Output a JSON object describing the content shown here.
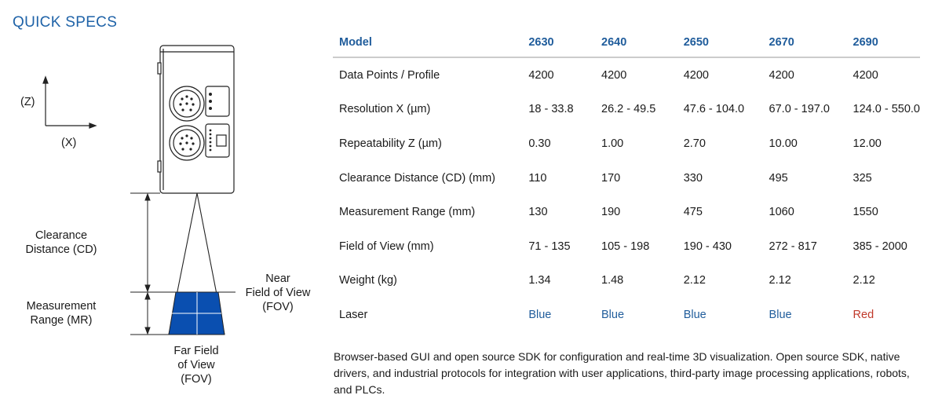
{
  "title": "QUICK SPECS",
  "diagram": {
    "axis_z": "(Z)",
    "axis_x": "(X)",
    "clearance_label": [
      "Clearance",
      "Distance (CD)"
    ],
    "measurement_label": [
      "Measurement",
      "Range (MR)"
    ],
    "near_fov_label": [
      "Near",
      "Field of View",
      "(FOV)"
    ],
    "far_fov_label": [
      "Far Field",
      "of View",
      "(FOV)"
    ],
    "fov_color": "#0a4fb0"
  },
  "table": {
    "header": [
      "Model",
      "2630",
      "2640",
      "2650",
      "2670",
      "2690"
    ],
    "rows": [
      [
        "Data Points / Profile",
        "4200",
        "4200",
        "4200",
        "4200",
        "4200"
      ],
      [
        "Resolution X (µm)",
        "18 - 33.8",
        "26.2 - 49.5",
        "47.6 - 104.0",
        "67.0 - 197.0",
        "124.0 - 550.0"
      ],
      [
        "Repeatability Z (µm)",
        "0.30",
        "1.00",
        "2.70",
        "10.00",
        "12.00"
      ],
      [
        "Clearance Distance (CD) (mm)",
        "110",
        "170",
        "330",
        "495",
        "325"
      ],
      [
        "Measurement Range (mm)",
        "130",
        "190",
        "475",
        "1060",
        "1550"
      ],
      [
        "Field of View (mm)",
        "71 - 135",
        "105 - 198",
        "190 - 430",
        "272 - 817",
        "385 - 2000"
      ],
      [
        "Weight (kg)",
        "1.34",
        "1.48",
        "2.12",
        "2.12",
        "2.12"
      ],
      [
        "Laser",
        "Blue",
        "Blue",
        "Blue",
        "Blue",
        "Red"
      ]
    ],
    "laser_colors": {
      "Blue": "#1f5c9b",
      "Red": "#c0392b"
    }
  },
  "description": "Browser-based GUI and open source SDK for configuration and real-time 3D visualization. Open source SDK, native drivers, and industrial protocols for integration with user applications, third-party image processing applications, robots, and PLCs."
}
